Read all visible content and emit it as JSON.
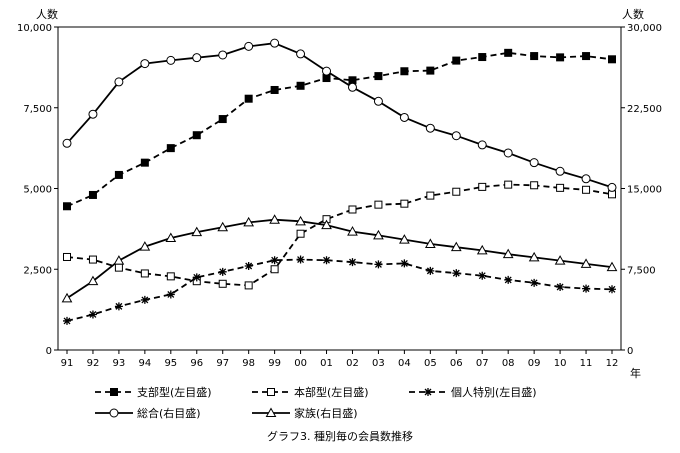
{
  "chart_data": {
    "type": "line",
    "title": "グラフ3. 種別毎の会員数推移",
    "left_axis_label": "人数",
    "right_axis_label": "人数",
    "x_axis_unit": "年",
    "categories": [
      "91",
      "92",
      "93",
      "94",
      "95",
      "96",
      "97",
      "98",
      "99",
      "00",
      "01",
      "02",
      "03",
      "04",
      "05",
      "06",
      "07",
      "08",
      "09",
      "10",
      "11",
      "12"
    ],
    "left_ylim": [
      0,
      10000
    ],
    "left_ticks": [
      "0",
      "2,500",
      "5,000",
      "7,500",
      "10,000"
    ],
    "right_ylim": [
      0,
      30000
    ],
    "right_ticks": [
      "0",
      "7,500",
      "15,000",
      "22,500",
      "30,000"
    ],
    "grid": false,
    "legend_position": "bottom",
    "series": [
      {
        "name": "支部型(左目盛)",
        "axis": "left",
        "marker": "filled-square",
        "line": "dashed",
        "values": [
          4450,
          4800,
          5420,
          5800,
          6250,
          6650,
          7150,
          7780,
          8050,
          8180,
          8420,
          8350,
          8480,
          8630,
          8650,
          8960,
          9070,
          9200,
          9100,
          9060,
          9100,
          9000
        ]
      },
      {
        "name": "本部型(左目盛)",
        "axis": "left",
        "marker": "open-square",
        "line": "dashed",
        "values": [
          2880,
          2800,
          2550,
          2370,
          2280,
          2130,
          2050,
          2000,
          2500,
          3600,
          4050,
          4350,
          4500,
          4530,
          4780,
          4900,
          5050,
          5120,
          5100,
          5020,
          4960,
          4820
        ]
      },
      {
        "name": "個人特別(左目盛)",
        "axis": "left",
        "marker": "asterisk",
        "line": "dashed",
        "values": [
          900,
          1100,
          1350,
          1550,
          1720,
          2250,
          2420,
          2600,
          2780,
          2800,
          2780,
          2720,
          2650,
          2680,
          2450,
          2380,
          2300,
          2170,
          2080,
          1950,
          1900,
          1880
        ]
      },
      {
        "name": "総合(右目盛)",
        "axis": "right",
        "marker": "open-circle",
        "line": "solid",
        "values": [
          19200,
          21900,
          24900,
          26600,
          26900,
          27150,
          27400,
          28200,
          28500,
          27500,
          25900,
          24400,
          23100,
          21600,
          20600,
          19900,
          19050,
          18300,
          17400,
          16600,
          15900,
          15100
        ]
      },
      {
        "name": "家族(右目盛)",
        "axis": "right",
        "marker": "open-triangle",
        "line": "solid",
        "values": [
          4800,
          6400,
          8300,
          9600,
          10400,
          10950,
          11400,
          11850,
          12100,
          11950,
          11600,
          11000,
          10650,
          10250,
          9850,
          9550,
          9250,
          8900,
          8600,
          8300,
          8000,
          7700
        ]
      }
    ]
  }
}
